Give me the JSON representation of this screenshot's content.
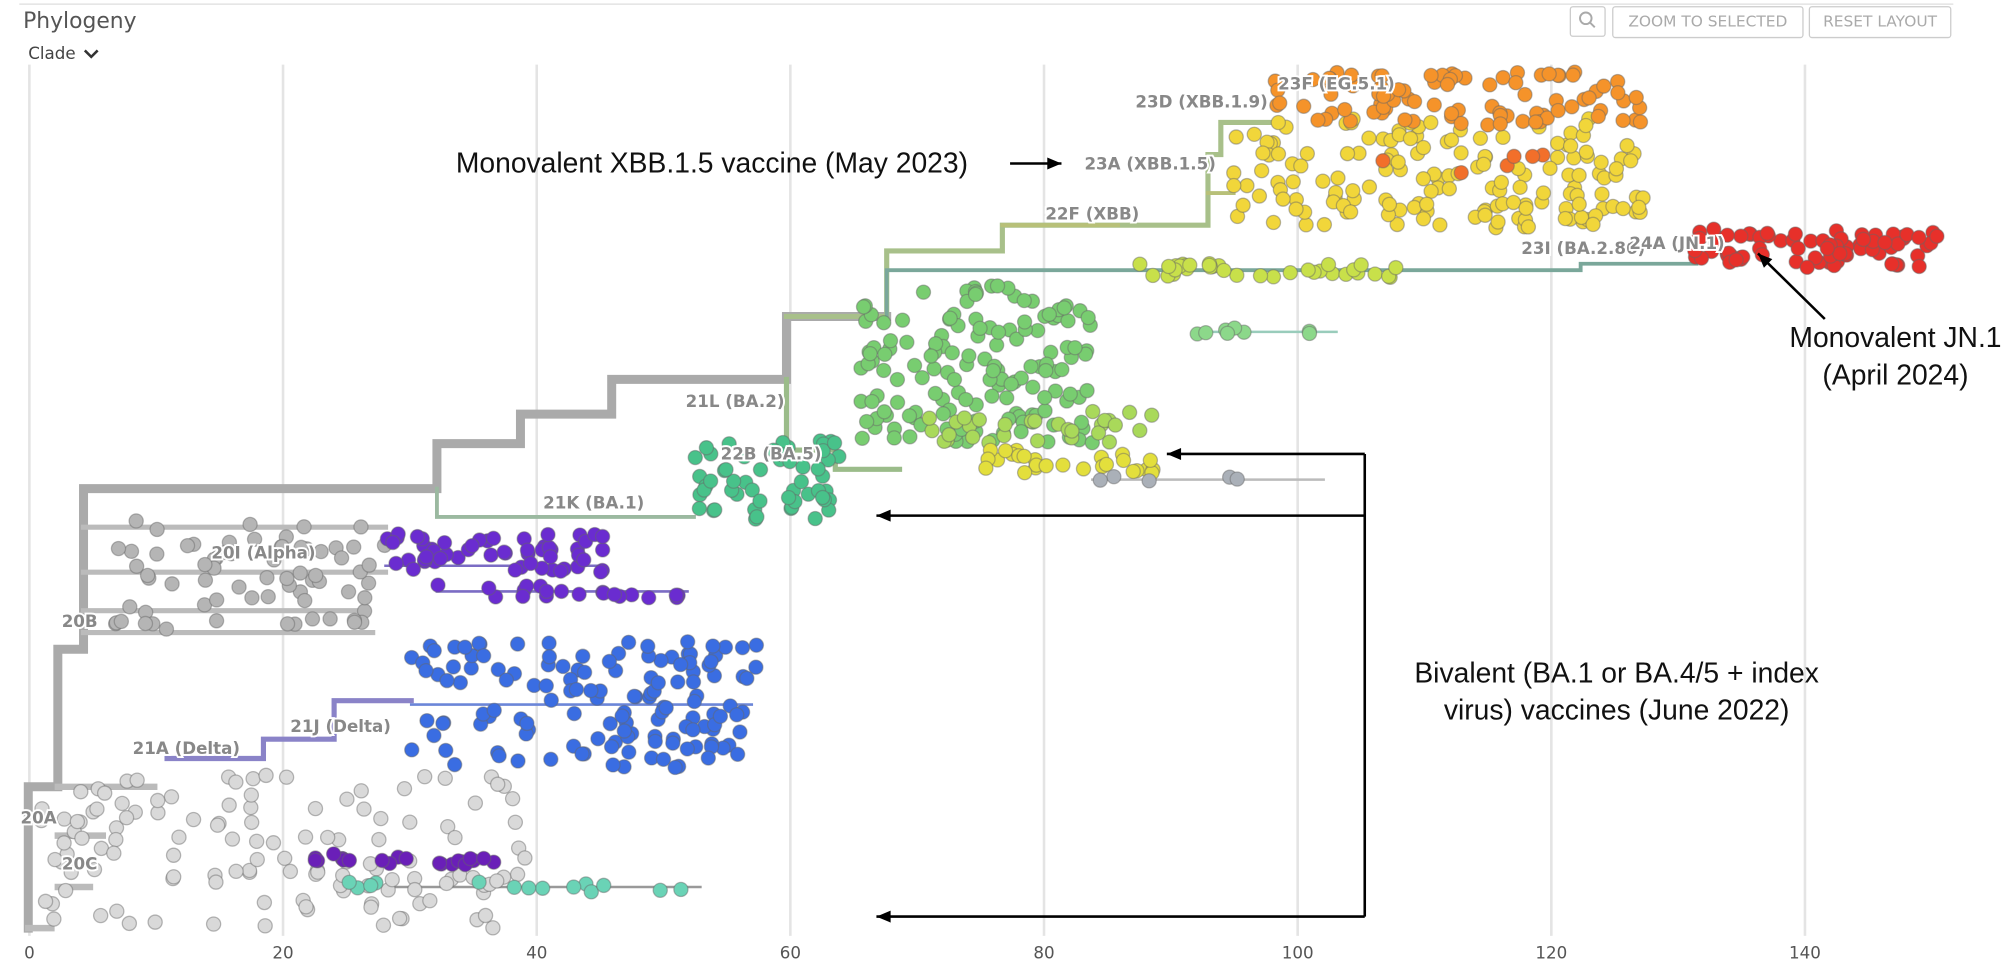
{
  "header": {
    "title": "Phylogeny",
    "color_by": "Clade",
    "buttons": [
      "ZOOM TO SELECTED",
      "RESET LAYOUT"
    ]
  },
  "chart_data": {
    "type": "tree",
    "xlim": [
      -1,
      152
    ],
    "xticks": [
      0,
      20,
      40,
      60,
      80,
      100,
      120,
      140
    ],
    "grid": true,
    "clade_labels": [
      "20A",
      "20B",
      "20C",
      "20I (Alpha)",
      "21A (Delta)",
      "21J (Delta)",
      "21K (BA.1)",
      "21L (BA.2)",
      "22B (BA.5)",
      "22F (XBB)",
      "23A (XBB.1.5)",
      "23D (XBB.1.9)",
      "23F (EG.5.1)",
      "23I (BA.2.86)",
      "24A (JN.1)"
    ],
    "annotations": [
      {
        "lines": [
          "Monovalent XBB.1.5 vaccine (May 2023)"
        ]
      },
      {
        "lines": [
          "Monovalent JN.1",
          "(April 2024)"
        ]
      },
      {
        "lines": [
          "Bivalent (BA.1 or BA.4/5 + index",
          "virus) vaccines (June 2022)"
        ]
      }
    ]
  }
}
